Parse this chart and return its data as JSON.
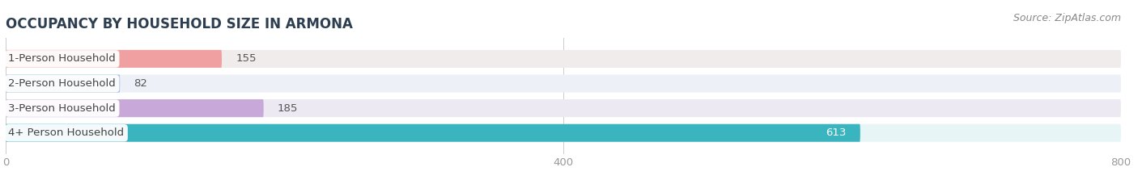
{
  "title": "OCCUPANCY BY HOUSEHOLD SIZE IN ARMONA",
  "source": "Source: ZipAtlas.com",
  "categories": [
    "1-Person Household",
    "2-Person Household",
    "3-Person Household",
    "4+ Person Household"
  ],
  "values": [
    155,
    82,
    185,
    613
  ],
  "bar_colors": [
    "#f0a0a0",
    "#a8bfe0",
    "#c8a8d8",
    "#3ab5c0"
  ],
  "bg_colors": [
    "#f0ecec",
    "#edf0f7",
    "#ede9f2",
    "#e8f5f6"
  ],
  "xlim": [
    0,
    800
  ],
  "xticks": [
    0,
    400,
    800
  ],
  "background": "#ffffff",
  "bar_height": 0.72,
  "title_fontsize": 12,
  "cat_fontsize": 9.5,
  "val_fontsize": 9.5,
  "tick_fontsize": 9.5,
  "source_fontsize": 9
}
